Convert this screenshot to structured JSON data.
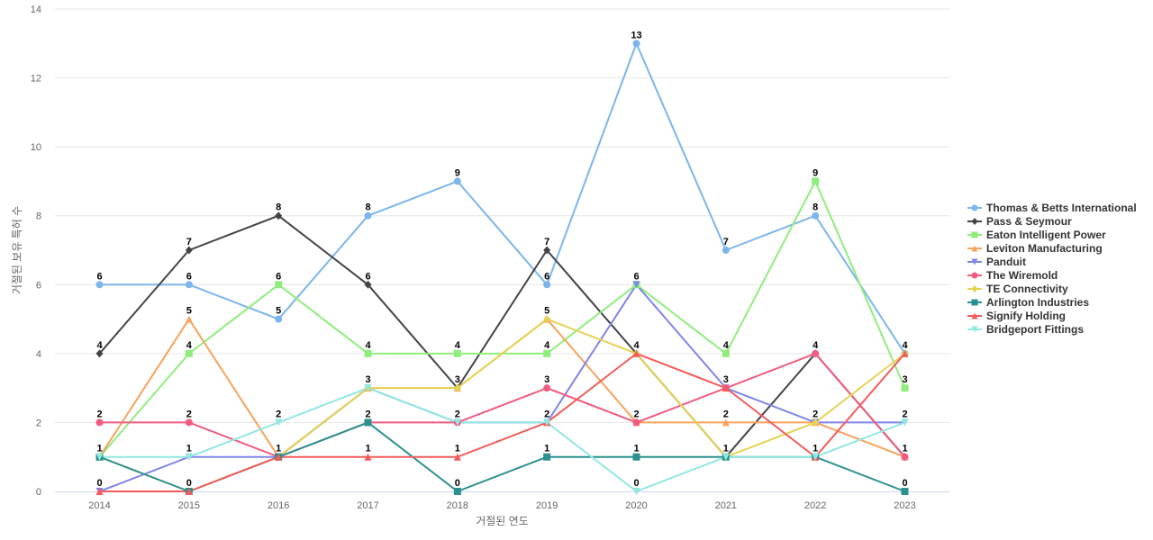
{
  "chart_data": {
    "type": "line",
    "xlabel": "거절된 연도",
    "ylabel": "거절된 보유 특허 수",
    "x": [
      2014,
      2015,
      2016,
      2017,
      2018,
      2019,
      2020,
      2021,
      2022,
      2023
    ],
    "ylim": [
      0,
      14
    ],
    "yticks": [
      0,
      2,
      4,
      6,
      8,
      10,
      12,
      14
    ],
    "grid": true,
    "legend_position": "right",
    "series": [
      {
        "name": "Thomas & Betts International",
        "color": "#7cb5ec",
        "marker": "circle",
        "values": [
          6,
          6,
          5,
          8,
          9,
          6,
          13,
          7,
          8,
          4
        ]
      },
      {
        "name": "Pass & Seymour",
        "color": "#434348",
        "marker": "diamond",
        "values": [
          4,
          7,
          8,
          6,
          3,
          7,
          4,
          1,
          4,
          1
        ]
      },
      {
        "name": "Eaton Intelligent Power",
        "color": "#90ed7d",
        "marker": "square",
        "values": [
          1,
          4,
          6,
          4,
          4,
          4,
          6,
          4,
          9,
          3
        ]
      },
      {
        "name": "Leviton Manufacturing",
        "color": "#f7a35c",
        "marker": "triangle",
        "values": [
          1,
          5,
          1,
          3,
          3,
          5,
          2,
          2,
          2,
          1
        ]
      },
      {
        "name": "Panduit",
        "color": "#8085e9",
        "marker": "triangle-down",
        "values": [
          0,
          1,
          1,
          3,
          2,
          2,
          6,
          3,
          2,
          2
        ]
      },
      {
        "name": "The Wiremold",
        "color": "#f15c80",
        "marker": "circle",
        "values": [
          2,
          2,
          1,
          2,
          2,
          3,
          2,
          3,
          4,
          1
        ]
      },
      {
        "name": "TE Connectivity",
        "color": "#e4d354",
        "marker": "diamond",
        "values": [
          1,
          0,
          1,
          3,
          3,
          5,
          4,
          1,
          2,
          4
        ]
      },
      {
        "name": "Arlington Industries",
        "color": "#2b908f",
        "marker": "square",
        "values": [
          1,
          0,
          1,
          2,
          0,
          1,
          1,
          1,
          1,
          0
        ]
      },
      {
        "name": "Signify Holding",
        "color": "#f45b5b",
        "marker": "triangle",
        "values": [
          0,
          0,
          1,
          1,
          1,
          2,
          4,
          3,
          1,
          4
        ]
      },
      {
        "name": "Bridgeport Fittings",
        "color": "#91e8e1",
        "marker": "triangle-down",
        "values": [
          1,
          1,
          2,
          3,
          2,
          2,
          0,
          1,
          1,
          2
        ]
      }
    ],
    "data_labels": [
      {
        "x": 2014,
        "series": "Thomas & Betts International",
        "text": "6"
      },
      {
        "x": 2014,
        "series": "Pass & Seymour",
        "text": "4"
      },
      {
        "x": 2014,
        "series": "The Wiremold",
        "text": "2"
      },
      {
        "x": 2014,
        "series": "Arlington Industries",
        "text": "1"
      },
      {
        "x": 2014,
        "series": "Panduit",
        "text": "0"
      },
      {
        "x": 2015,
        "series": "Pass & Seymour",
        "text": "7"
      },
      {
        "x": 2015,
        "series": "Thomas & Betts International",
        "text": "6"
      },
      {
        "x": 2015,
        "series": "Leviton Manufacturing",
        "text": "5"
      },
      {
        "x": 2015,
        "series": "Eaton Intelligent Power",
        "text": "4"
      },
      {
        "x": 2015,
        "series": "The Wiremold",
        "text": "2"
      },
      {
        "x": 2015,
        "series": "Bridgeport Fittings",
        "text": "1"
      },
      {
        "x": 2015,
        "series": "Arlington Industries",
        "text": "0"
      },
      {
        "x": 2016,
        "series": "Pass & Seymour",
        "text": "8"
      },
      {
        "x": 2016,
        "series": "Eaton Intelligent Power",
        "text": "6"
      },
      {
        "x": 2016,
        "series": "Thomas & Betts International",
        "text": "5"
      },
      {
        "x": 2016,
        "series": "Bridgeport Fittings",
        "text": "2"
      },
      {
        "x": 2016,
        "series": "Arlington Industries",
        "text": "1"
      },
      {
        "x": 2017,
        "series": "Thomas & Betts International",
        "text": "8"
      },
      {
        "x": 2017,
        "series": "Pass & Seymour",
        "text": "6"
      },
      {
        "x": 2017,
        "series": "Eaton Intelligent Power",
        "text": "4"
      },
      {
        "x": 2017,
        "series": "Bridgeport Fittings",
        "text": "3"
      },
      {
        "x": 2017,
        "series": "Arlington Industries",
        "text": "2"
      },
      {
        "x": 2017,
        "series": "Signify Holding",
        "text": "1"
      },
      {
        "x": 2018,
        "series": "Thomas & Betts International",
        "text": "9"
      },
      {
        "x": 2018,
        "series": "Eaton Intelligent Power",
        "text": "4"
      },
      {
        "x": 2018,
        "series": "Pass & Seymour",
        "text": "3"
      },
      {
        "x": 2018,
        "series": "The Wiremold",
        "text": "2"
      },
      {
        "x": 2018,
        "series": "Signify Holding",
        "text": "1"
      },
      {
        "x": 2018,
        "series": "Arlington Industries",
        "text": "0"
      },
      {
        "x": 2019,
        "series": "Pass & Seymour",
        "text": "7"
      },
      {
        "x": 2019,
        "series": "Thomas & Betts International",
        "text": "6"
      },
      {
        "x": 2019,
        "series": "Leviton Manufacturing",
        "text": "5"
      },
      {
        "x": 2019,
        "series": "Eaton Intelligent Power",
        "text": "4"
      },
      {
        "x": 2019,
        "series": "The Wiremold",
        "text": "3"
      },
      {
        "x": 2019,
        "series": "Signify Holding",
        "text": "2"
      },
      {
        "x": 2019,
        "series": "Arlington Industries",
        "text": "1"
      },
      {
        "x": 2020,
        "series": "Thomas & Betts International",
        "text": "13"
      },
      {
        "x": 2020,
        "series": "Eaton Intelligent Power",
        "text": "6"
      },
      {
        "x": 2020,
        "series": "Pass & Seymour",
        "text": "4"
      },
      {
        "x": 2020,
        "series": "The Wiremold",
        "text": "2"
      },
      {
        "x": 2020,
        "series": "Arlington Industries",
        "text": "1"
      },
      {
        "x": 2020,
        "series": "Bridgeport Fittings",
        "text": "0"
      },
      {
        "x": 2021,
        "series": "Thomas & Betts International",
        "text": "7"
      },
      {
        "x": 2021,
        "series": "Eaton Intelligent Power",
        "text": "4"
      },
      {
        "x": 2021,
        "series": "The Wiremold",
        "text": "3"
      },
      {
        "x": 2021,
        "series": "Leviton Manufacturing",
        "text": "2"
      },
      {
        "x": 2021,
        "series": "Arlington Industries",
        "text": "1"
      },
      {
        "x": 2022,
        "series": "Eaton Intelligent Power",
        "text": "9"
      },
      {
        "x": 2022,
        "series": "Thomas & Betts International",
        "text": "8"
      },
      {
        "x": 2022,
        "series": "Pass & Seymour",
        "text": "4"
      },
      {
        "x": 2022,
        "series": "Leviton Manufacturing",
        "text": "2"
      },
      {
        "x": 2022,
        "series": "Arlington Industries",
        "text": "1"
      },
      {
        "x": 2023,
        "series": "Thomas & Betts International",
        "text": "4"
      },
      {
        "x": 2023,
        "series": "Eaton Intelligent Power",
        "text": "3"
      },
      {
        "x": 2023,
        "series": "Panduit",
        "text": "2"
      },
      {
        "x": 2023,
        "series": "The Wiremold",
        "text": "1"
      },
      {
        "x": 2023,
        "series": "Arlington Industries",
        "text": "0"
      }
    ]
  }
}
